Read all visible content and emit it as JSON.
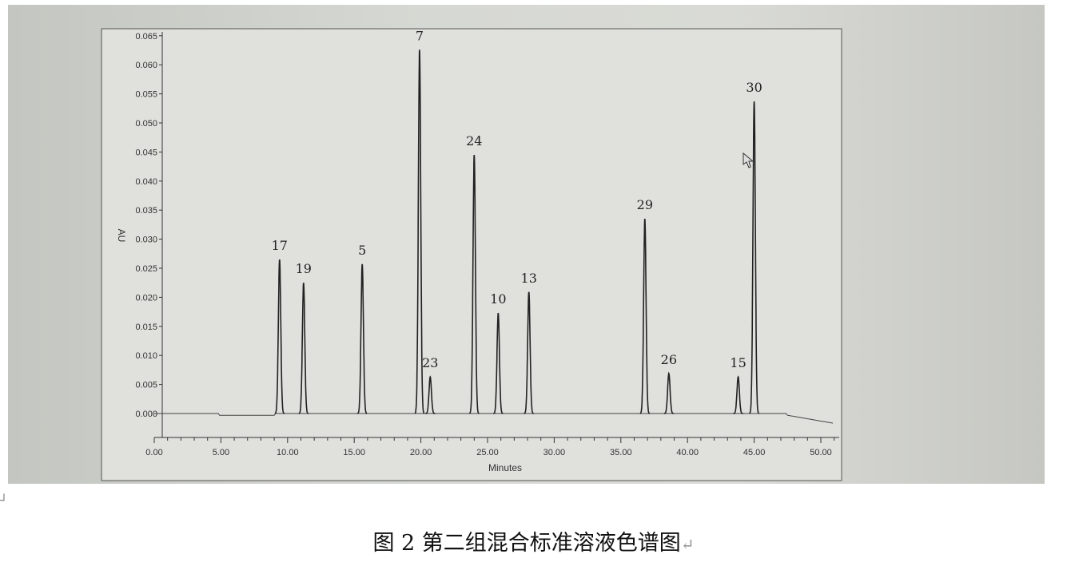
{
  "chart_data": {
    "type": "line",
    "xlabel": "Minutes",
    "ylabel": "AU",
    "xlim": [
      0,
      51
    ],
    "ylim": [
      -0.004,
      0.066
    ],
    "x_ticks": [
      "0.00",
      "5.00",
      "10.00",
      "15.00",
      "20.00",
      "25.00",
      "30.00",
      "35.00",
      "40.00",
      "45.00",
      "50.00"
    ],
    "y_ticks": [
      "0.000",
      "0.005",
      "0.010",
      "0.015",
      "0.020",
      "0.025",
      "0.030",
      "0.035",
      "0.040",
      "0.045",
      "0.050",
      "0.055",
      "0.060",
      "0.065"
    ],
    "grid": false,
    "peaks": [
      {
        "label": "17",
        "x": 9.4,
        "y": 0.0265
      },
      {
        "label": "19",
        "x": 11.2,
        "y": 0.0225
      },
      {
        "label": "5",
        "x": 15.6,
        "y": 0.0257
      },
      {
        "label": "7",
        "x": 19.9,
        "y": 0.0626
      },
      {
        "label": "23",
        "x": 20.7,
        "y": 0.0063
      },
      {
        "label": "24",
        "x": 24.0,
        "y": 0.0445
      },
      {
        "label": "10",
        "x": 25.8,
        "y": 0.0173
      },
      {
        "label": "13",
        "x": 28.1,
        "y": 0.0209
      },
      {
        "label": "29",
        "x": 36.8,
        "y": 0.0335
      },
      {
        "label": "26",
        "x": 38.6,
        "y": 0.0069
      },
      {
        "label": "15",
        "x": 43.8,
        "y": 0.0063
      },
      {
        "label": "30",
        "x": 45.0,
        "y": 0.0537
      }
    ]
  },
  "caption": {
    "text": "图 2 第二组混合标准溶液色谱图",
    "return_mark": "↵"
  }
}
